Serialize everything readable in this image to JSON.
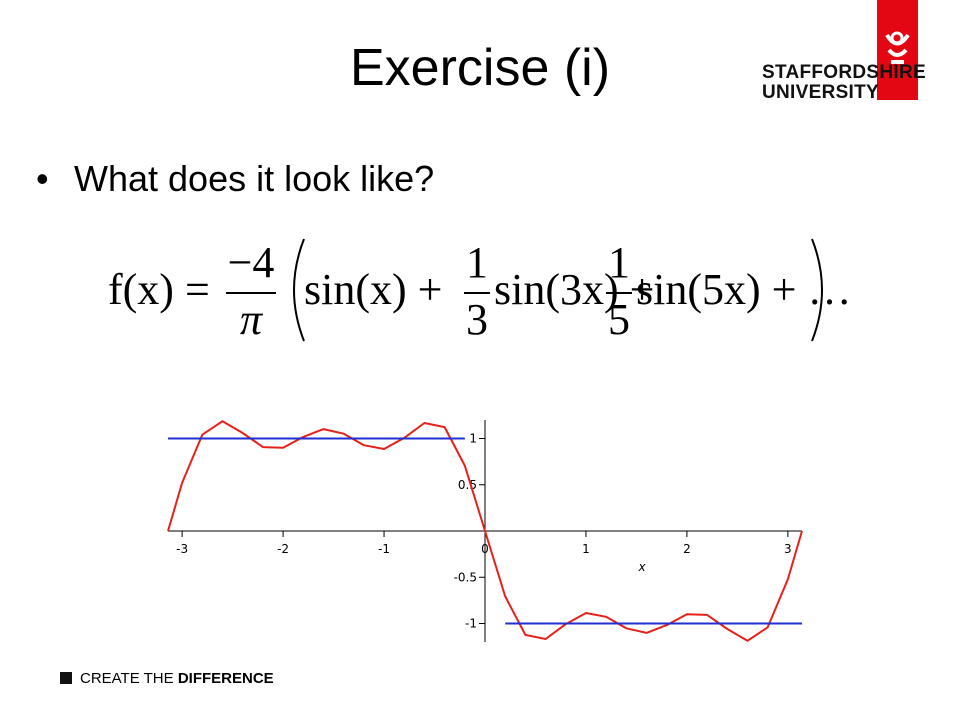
{
  "header": {
    "title": "Exercise (i)",
    "logo_line1": "STAFFORDSHIRE",
    "logo_line2": "UNIVERSITY"
  },
  "bullets": [
    "What does it look like?"
  ],
  "formula": {
    "lhs": "f(x) =",
    "coef_num": "−4",
    "coef_den": "π",
    "term1": "sin(x) +",
    "frac1_num": "1",
    "frac1_den": "3",
    "term2": "sin(3x) +",
    "frac2_num": "1",
    "frac2_den": "5",
    "term3": "sin(5x) + …"
  },
  "chart_data": {
    "type": "line",
    "x_label": "x",
    "x": [
      -3.14,
      -3.0,
      -2.8,
      -2.6,
      -2.4,
      -2.2,
      -2.0,
      -1.8,
      -1.6,
      -1.4,
      -1.2,
      -1.0,
      -0.8,
      -0.6,
      -0.4,
      -0.2,
      0,
      0.2,
      0.4,
      0.6,
      0.8,
      1.0,
      1.2,
      1.4,
      1.6,
      1.8,
      2.0,
      2.2,
      2.4,
      2.6,
      2.8,
      3.0,
      3.14
    ],
    "series": [
      {
        "color": "#e8201a",
        "values": [
          0,
          0.52,
          1.041,
          1.187,
          1.06,
          0.907,
          0.901,
          1.017,
          1.102,
          1.052,
          0.928,
          0.887,
          1.007,
          1.168,
          1.123,
          0.707,
          0,
          -0.707,
          -1.123,
          -1.168,
          -1.007,
          -0.887,
          -0.928,
          -1.052,
          -1.102,
          -1.017,
          -0.901,
          -0.907,
          -1.06,
          -1.187,
          -1.041,
          -0.52,
          0
        ]
      },
      {
        "color": "#1f2fd0",
        "values": [
          1,
          1,
          1,
          1,
          1,
          1,
          1,
          1,
          1,
          1,
          1,
          1,
          1,
          1,
          1,
          1,
          null,
          -1,
          -1,
          -1,
          -1,
          -1,
          -1,
          -1,
          -1,
          -1,
          -1,
          -1,
          -1,
          -1,
          -1,
          -1,
          -1
        ]
      }
    ],
    "xlim": [
      -3.14,
      3.14
    ],
    "ylim": [
      -1.2,
      1.2
    ],
    "xticks": [
      -3,
      -2,
      -1,
      0,
      1,
      2,
      3
    ],
    "yticks": [
      -1,
      -0.5,
      0.5,
      1
    ]
  },
  "footer": {
    "part1": "CREATE THE",
    "part2": "DIFFERENCE"
  }
}
